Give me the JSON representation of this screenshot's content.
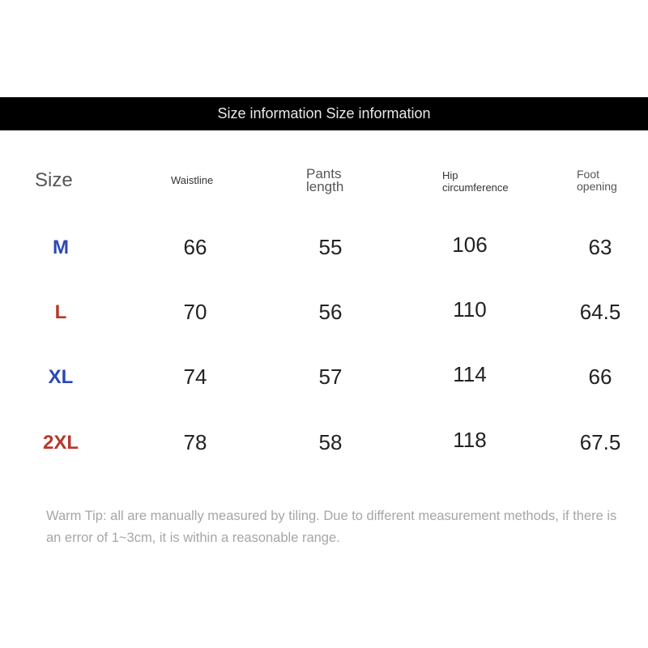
{
  "banner": {
    "title": "Size information Size information"
  },
  "table": {
    "headers": [
      "Size",
      "Waistline",
      "Pants length",
      "Hip circumference",
      "Foot opening"
    ],
    "rows": [
      {
        "size": "M",
        "color": "#2b48b3",
        "values": [
          "66",
          "55",
          "106",
          "63"
        ]
      },
      {
        "size": "L",
        "color": "#b5392d",
        "values": [
          "70",
          "56",
          "110",
          "64.5"
        ]
      },
      {
        "size": "XL",
        "color": "#2b48b3",
        "values": [
          "74",
          "57",
          "114",
          "66"
        ]
      },
      {
        "size": "2XL",
        "color": "#b5392d",
        "values": [
          "78",
          "58",
          "118",
          "67.5"
        ]
      }
    ]
  },
  "tip": "Warm Tip: all are manually measured by tiling. Due to different measurement methods, if there is an error of 1~3cm, it is within a reasonable range."
}
